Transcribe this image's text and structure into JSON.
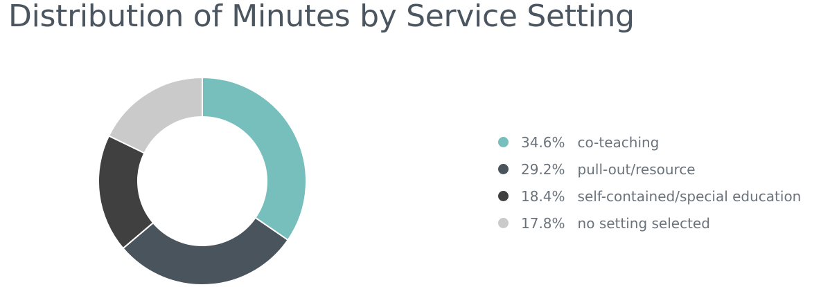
{
  "chart_data": {
    "type": "pie",
    "title": "Distribution of Minutes by Service Setting",
    "donut": true,
    "legend_position": "right",
    "slices": [
      {
        "label": "co-teaching",
        "value": 34.6,
        "display": "34.6%",
        "color": "#76bfbd"
      },
      {
        "label": "pull-out/resource",
        "value": 29.2,
        "display": "29.2%",
        "color": "#4a545d"
      },
      {
        "label": "self-contained/special education",
        "value": 18.4,
        "display": "18.4%",
        "color": "#404040"
      },
      {
        "label": "no setting selected",
        "value": 17.8,
        "display": "17.8%",
        "color": "#cacaca"
      }
    ]
  }
}
